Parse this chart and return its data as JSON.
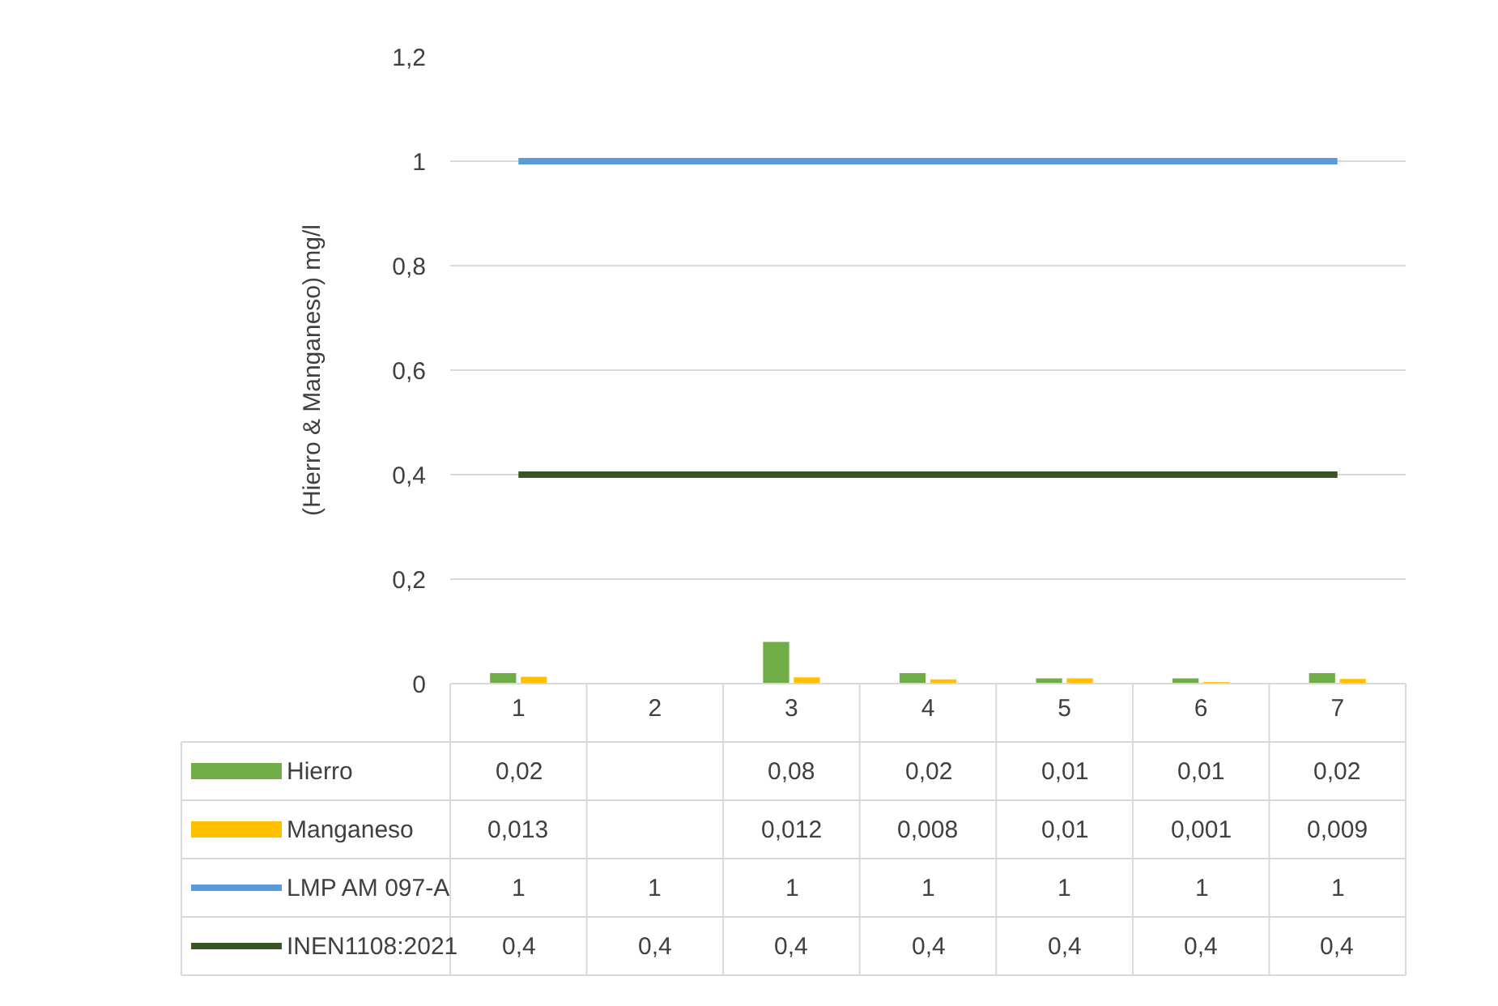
{
  "chart_data": {
    "type": "bar",
    "ylabel": "(Hierro & Manganeso) mg/l",
    "categories": [
      "1",
      "2",
      "3",
      "4",
      "5",
      "6",
      "7"
    ],
    "series": [
      {
        "name": "Hierro",
        "color": "#70ad47",
        "values": [
          0.02,
          null,
          0.08,
          0.02,
          0.01,
          0.01,
          0.02
        ],
        "value_labels": [
          "0,02",
          null,
          "0,08",
          "0,02",
          "0,01",
          "0,01",
          "0,02"
        ]
      },
      {
        "name": "Manganeso",
        "color": "#ffc000",
        "values": [
          0.013,
          null,
          0.012,
          0.008,
          0.01,
          0.001,
          0.009
        ],
        "value_labels": [
          "0,013",
          null,
          "0,012",
          "0,008",
          "0,01",
          "0,001",
          "0,009"
        ]
      },
      {
        "name": "LMP AM 097-A",
        "type": "line",
        "color": "#5b9bd5",
        "values": [
          1,
          1,
          1,
          1,
          1,
          1,
          1
        ],
        "value_labels": [
          "1",
          "1",
          "1",
          "1",
          "1",
          "1",
          "1"
        ]
      },
      {
        "name": "INEN1108:2021",
        "type": "line",
        "color": "#375623",
        "values": [
          0.4,
          0.4,
          0.4,
          0.4,
          0.4,
          0.4,
          0.4
        ],
        "value_labels": [
          "0,4",
          "0,4",
          "0,4",
          "0,4",
          "0,4",
          "0,4",
          "0,4"
        ]
      }
    ],
    "ylim": [
      0,
      1.2
    ],
    "yticks": [
      0,
      {
        "value": 0.2,
        "label": "0,2"
      },
      {
        "value": 0.4,
        "label": "0,4"
      },
      {
        "value": 0.6,
        "label": "0,6"
      },
      {
        "value": 0.8,
        "label": "0,8"
      },
      1,
      {
        "value": 1.2,
        "label": "1,2"
      }
    ],
    "grid": "y",
    "legend": "bottom"
  }
}
